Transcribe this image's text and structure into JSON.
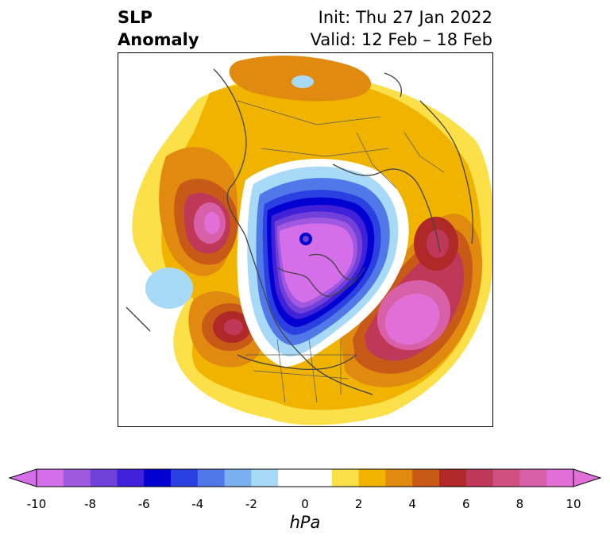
{
  "header": {
    "title_line1": "SLP",
    "title_line2": "Anomaly",
    "init": "Init: Thu 27 Jan 2022",
    "valid": "Valid: 12 Feb – 18 Feb"
  },
  "colorbar": {
    "unit": "hPa",
    "ticks": [
      "-10",
      "-8",
      "-6",
      "-4",
      "-2",
      "0",
      "2",
      "4",
      "6",
      "8",
      "10"
    ],
    "colors": [
      "#d56fe9",
      "#a058e0",
      "#7040d8",
      "#4020d8",
      "#0000d0",
      "#2a40e0",
      "#5078e8",
      "#7ab0f0",
      "#a8daf8",
      "#ffffff",
      "#ffffff",
      "#fbe04a",
      "#f0b400",
      "#e08a10",
      "#c85a18",
      "#b02828",
      "#c03858",
      "#d05080",
      "#d860a8",
      "#e070d8"
    ],
    "extend": "both"
  },
  "map": {
    "projection": "north-polar-stereographic",
    "features": [
      "coastlines",
      "country-borders",
      "state-borders"
    ],
    "anomaly_centers": [
      {
        "region": "Arctic / Greenland",
        "sign": "negative",
        "min_hPa": -10
      },
      {
        "region": "Alaska / Bering",
        "sign": "positive",
        "max_hPa": 8
      },
      {
        "region": "NE Pacific / West Canada",
        "sign": "positive",
        "max_hPa": 6
      },
      {
        "region": "North Atlantic / Europe",
        "sign": "positive",
        "max_hPa": 10
      },
      {
        "region": "Central Asia",
        "sign": "positive",
        "max_hPa": 8
      },
      {
        "region": "Central Pacific",
        "sign": "negative",
        "min_hPa": -2
      }
    ]
  }
}
